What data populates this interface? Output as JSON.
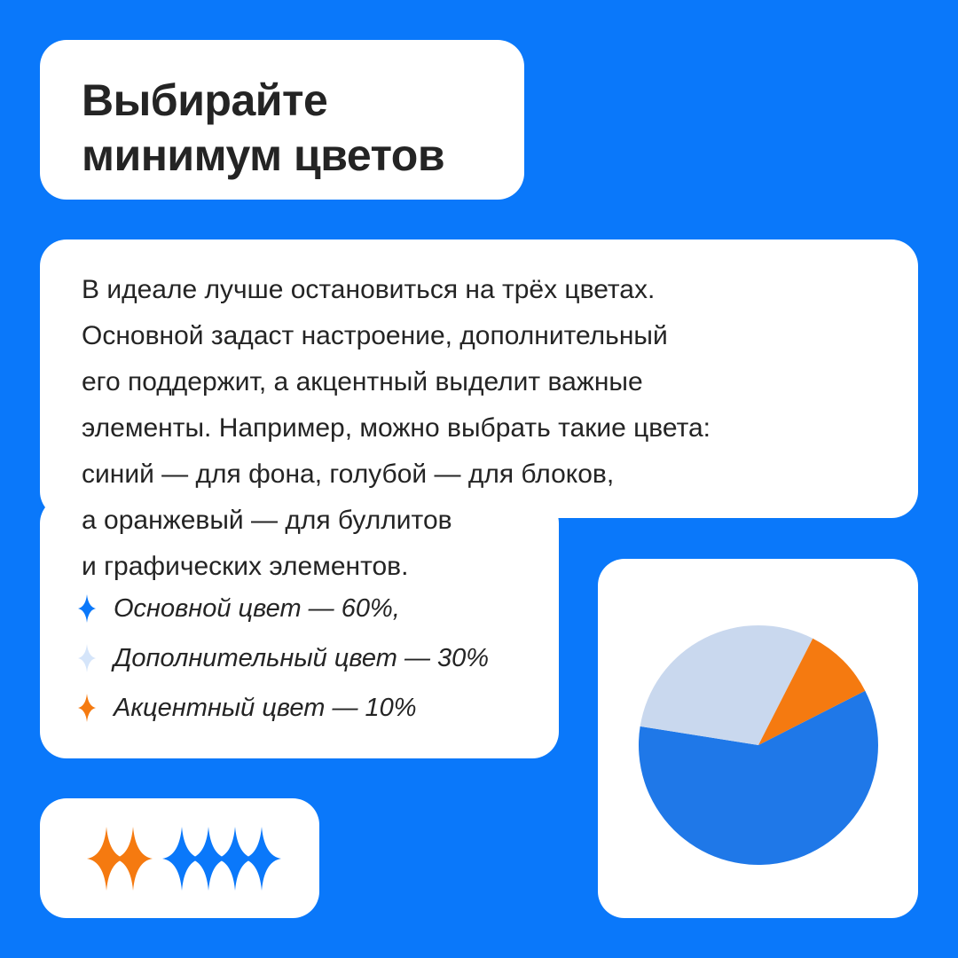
{
  "title": {
    "lines": [
      "Выбирайте",
      "минимум цветов"
    ]
  },
  "body": {
    "lines": [
      "В идеале лучше остановиться на трёх цветах.",
      "Основной задаст настроение, дополнительный",
      "его поддержит, а акцентный выделит важные",
      "элементы. Например, можно выбрать такие цвета:",
      "синий — для фона, голубой — для блоков,",
      "а оранжевый — для буллитов",
      "и графических элементов."
    ]
  },
  "legend": {
    "items": [
      {
        "label": "Основной цвет — 60%,",
        "color": "#0a78fa",
        "icon": "sparkle-icon"
      },
      {
        "label": "Дополнительный цвет — 30%",
        "color": "#d5e5fa",
        "icon": "sparkle-icon"
      },
      {
        "label": "Акцентный цвет — 10%",
        "color": "#f57a10",
        "icon": "sparkle-icon"
      }
    ]
  },
  "chart_data": {
    "type": "pie",
    "title": "",
    "slices": [
      {
        "label": "Основной цвет",
        "value": 60,
        "color": "#1f78e8"
      },
      {
        "label": "Дополнительный цвет",
        "value": 30,
        "color": "#c9d8ee"
      },
      {
        "label": "Акцентный цвет",
        "value": 10,
        "color": "#f57a10"
      }
    ]
  },
  "decor": {
    "sparkles": [
      {
        "color": "#f57a10",
        "icon": "sparkle-icon"
      },
      {
        "color": "#f57a10",
        "icon": "sparkle-icon"
      },
      {
        "color": "#0a78fa",
        "icon": "sparkle-icon"
      },
      {
        "color": "#0a78fa",
        "icon": "sparkle-icon"
      },
      {
        "color": "#0a78fa",
        "icon": "sparkle-icon"
      },
      {
        "color": "#0a78fa",
        "icon": "sparkle-icon"
      }
    ]
  },
  "colors": {
    "background": "#0a78fa",
    "card": "#ffffff",
    "text": "#242424"
  }
}
